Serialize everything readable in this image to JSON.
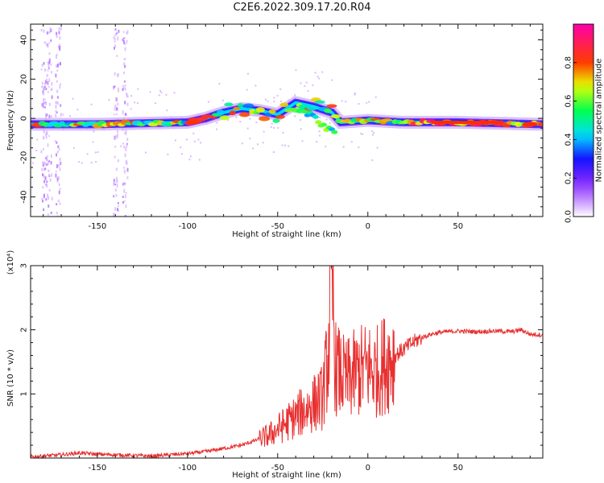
{
  "title": "C2E6.2022.309.17.20.R04",
  "chart_data": [
    {
      "type": "heatmap",
      "xlabel": "Height of straight line (km)",
      "ylabel": "Frequency (Hz)",
      "xlim": [
        -187,
        97
      ],
      "ylim": [
        -50,
        48
      ],
      "x_ticks": [
        -150,
        -100,
        -50,
        0,
        50
      ],
      "x_tick_labels": [
        "-150",
        "-100",
        "-50",
        "0",
        "50"
      ],
      "y_ticks": [
        -40,
        -20,
        0,
        20,
        40
      ],
      "y_tick_labels": [
        "-40",
        "-20",
        "0",
        "20",
        "40"
      ],
      "colorbar": {
        "label": "Normalized spectral amplitude",
        "range": [
          0,
          1
        ],
        "ticks": [
          0.0,
          0.2,
          0.4,
          0.6,
          0.8
        ],
        "tick_labels": [
          "0.0",
          "0.2",
          "0.4",
          "0.6",
          "0.8"
        ],
        "colors": [
          "#ffffff",
          "#9b30ff",
          "#0000ff",
          "#00e5ff",
          "#00ff00",
          "#ffff00",
          "#ff0000",
          "#ff00aa"
        ]
      },
      "ridge": {
        "description_points": [
          {
            "x": -185,
            "y": -3
          },
          {
            "x": -150,
            "y": -3
          },
          {
            "x": -100,
            "y": -2
          },
          {
            "x": -90,
            "y": 0
          },
          {
            "x": -80,
            "y": 3
          },
          {
            "x": -70,
            "y": 5
          },
          {
            "x": -60,
            "y": 4
          },
          {
            "x": -50,
            "y": 2
          },
          {
            "x": -40,
            "y": 8
          },
          {
            "x": -30,
            "y": 6
          },
          {
            "x": -20,
            "y": 3
          },
          {
            "x": -15,
            "y": -2
          },
          {
            "x": 0,
            "y": -1
          },
          {
            "x": 20,
            "y": -2
          },
          {
            "x": 50,
            "y": -2
          },
          {
            "x": 97,
            "y": -3
          }
        ]
      },
      "grid": false
    },
    {
      "type": "line",
      "xlabel": "Height of straight line (km)",
      "ylabel": "SNR (10 * v/v)",
      "y_multiplier": "(x10⁴)",
      "xlim": [
        -187,
        97
      ],
      "ylim": [
        0,
        3
      ],
      "x_ticks": [
        -150,
        -100,
        -50,
        0,
        50
      ],
      "x_tick_labels": [
        "-150",
        "-100",
        "-50",
        "0",
        "50"
      ],
      "y_ticks": [
        1,
        2,
        3
      ],
      "y_tick_labels": [
        "1",
        "2",
        "3"
      ],
      "line_color": "#e83030",
      "series": [
        {
          "x": [
            -187,
            -170,
            -160,
            -150,
            -140,
            -130,
            -120,
            -110,
            -100,
            -90,
            -80,
            -70,
            -60,
            -55,
            -50,
            -45,
            -40,
            -35,
            -30,
            -25,
            -22,
            -20,
            -18,
            -15,
            -12,
            -10,
            -5,
            0,
            5,
            10,
            15,
            20,
            25,
            30,
            35,
            40,
            50,
            60,
            70,
            80,
            85,
            90,
            97
          ],
          "y": [
            0.02,
            0.05,
            0.08,
            0.06,
            0.05,
            0.04,
            0.03,
            0.05,
            0.07,
            0.1,
            0.15,
            0.2,
            0.3,
            0.35,
            0.45,
            0.55,
            0.65,
            0.75,
            0.85,
            0.95,
            1.6,
            2.9,
            1.4,
            1.3,
            1.2,
            1.25,
            1.35,
            1.4,
            1.35,
            1.5,
            1.6,
            1.7,
            1.8,
            1.88,
            1.93,
            1.96,
            1.98,
            1.97,
            1.98,
            1.97,
            2.0,
            1.93,
            1.92
          ]
        }
      ],
      "grid": false
    }
  ]
}
